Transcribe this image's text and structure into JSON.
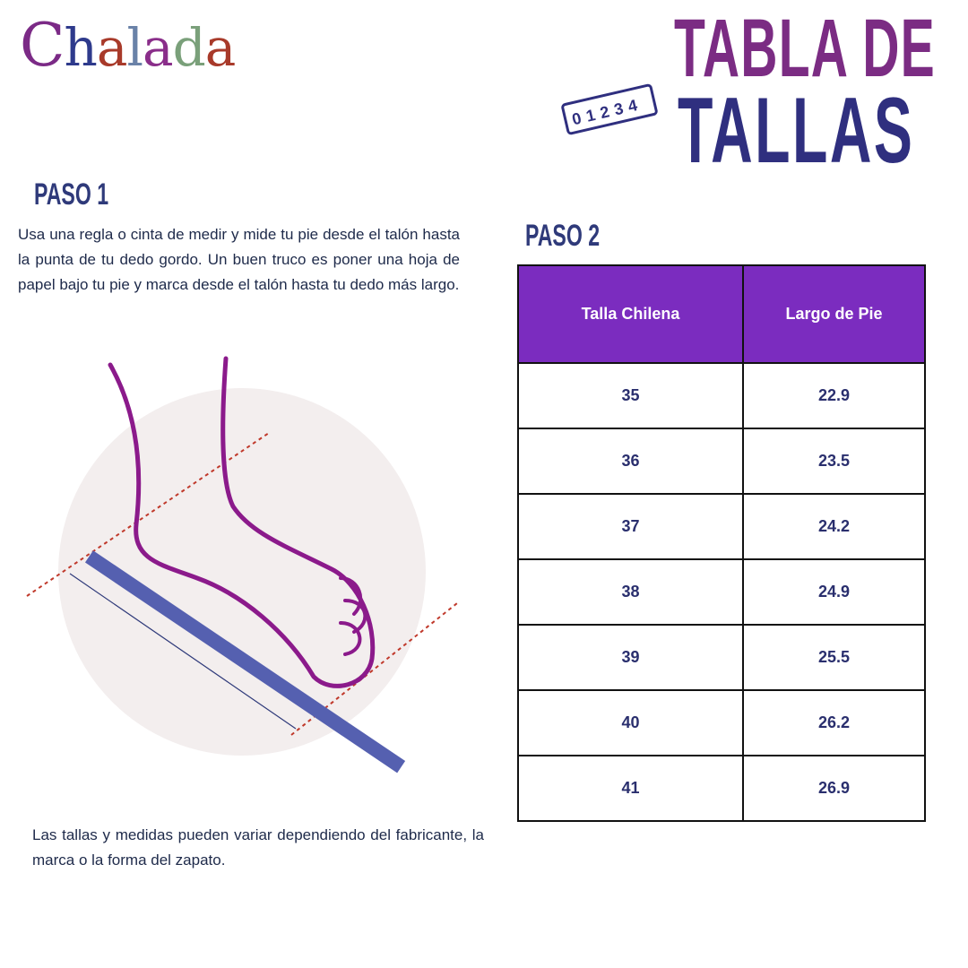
{
  "brand": {
    "logo_text": "Chalada"
  },
  "header": {
    "title_line1": "TABLA DE",
    "title_line2": "TALLAS",
    "ruler_digits": "01234"
  },
  "step1": {
    "heading": "PASO 1",
    "text": "Usa una regla o cinta de medir y mide tu pie desde el talón hasta la punta de tu dedo gordo. Un buen truco es poner una hoja de papel bajo tu pie y marca desde el talón hasta tu dedo más largo."
  },
  "step2": {
    "heading": "PASO 2"
  },
  "table": {
    "headers": [
      "Talla Chilena",
      "Largo de Pie"
    ],
    "rows": [
      [
        "35",
        "22.9"
      ],
      [
        "36",
        "23.5"
      ],
      [
        "37",
        "24.2"
      ],
      [
        "38",
        "24.9"
      ],
      [
        "39",
        "25.5"
      ],
      [
        "40",
        "26.2"
      ],
      [
        "41",
        "26.9"
      ]
    ],
    "header_color": "#7b2cbf"
  },
  "note": "Las tallas y medidas pueden variar dependiendo del fabricante, la marca o la forma del zapato."
}
